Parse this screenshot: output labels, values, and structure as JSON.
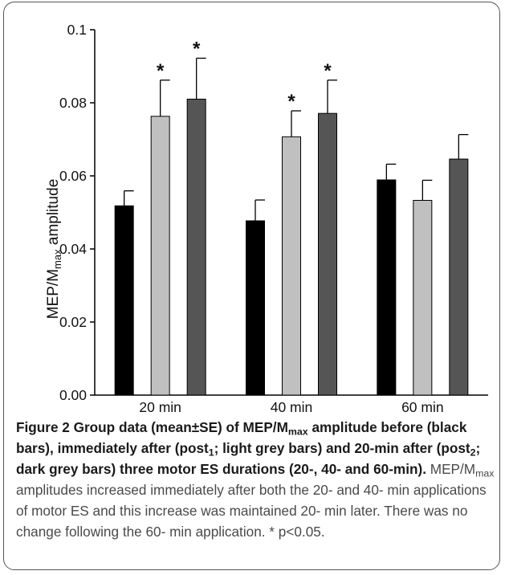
{
  "chart_data": {
    "type": "bar",
    "categories": [
      "20 min",
      "40 min",
      "60 min"
    ],
    "series": [
      {
        "color": "#000000",
        "values": [
          0.0518,
          0.0477,
          0.0589
        ],
        "errors": [
          0.0041,
          0.0057,
          0.0043
        ]
      },
      {
        "color": "#c0c0c0",
        "values": [
          0.0763,
          0.0707,
          0.0533
        ],
        "errors": [
          0.0099,
          0.0071,
          0.0055
        ]
      },
      {
        "color": "#555555",
        "values": [
          0.081,
          0.0771,
          0.0646
        ],
        "errors": [
          0.0112,
          0.0091,
          0.0067
        ]
      }
    ],
    "significance": [
      {
        "category": 0,
        "series": 1,
        "label": "*"
      },
      {
        "category": 0,
        "series": 2,
        "label": "*"
      },
      {
        "category": 1,
        "series": 1,
        "label": "*"
      },
      {
        "category": 1,
        "series": 2,
        "label": "*"
      }
    ],
    "ylabel": {
      "main": "MEP/M",
      "sub": "max",
      "tail": " amplitude"
    },
    "ylim": [
      0,
      0.1
    ],
    "yticks": [
      "0.00",
      "0.02",
      "0.04",
      "0.06",
      "0.08",
      "0.1"
    ],
    "grid": false
  },
  "caption": {
    "bold_1": "Figure 2 Group data (mean±SE) of MEP/M",
    "bold_sub_1": "max",
    "bold_2": " amplitude before (black bars), immediately after (post",
    "bold_sub_2": "1",
    "bold_3": "; light grey bars) and 20-min after (post",
    "bold_sub_3": "2",
    "bold_4": "; dark grey bars) three motor ES durations (20-, 40- and 60-min).",
    "normal_1": " MEP/M",
    "normal_sub": "max",
    "normal_2": " amplitudes increased immediately after both the 20- and 40- min applications of motor ES and this increase was maintained 20- min later. There was no change following the 60- min application. * p<0.05."
  }
}
